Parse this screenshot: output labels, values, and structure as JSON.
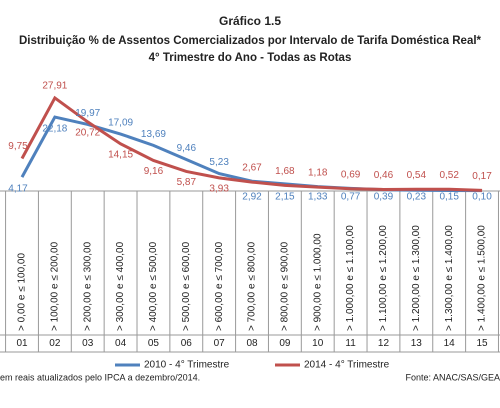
{
  "chart_data": {
    "type": "line",
    "title": "Gráfico 1.5",
    "subtitle": [
      "Distribuição % de Assentos Comercializados por Intervalo de Tarifa Doméstica Real*",
      "4° Trimestre do Ano - Todas as Rotas"
    ],
    "categories": [
      "> 0,00 e ≤ 100,00",
      "> 100,00 e ≤ 200,00",
      "> 200,00 e ≤ 300,00",
      "> 300,00 e ≤ 400,00",
      "> 400,00 e ≤ 500,00",
      "> 500,00 e ≤ 600,00",
      "> 600,00 e ≤ 700,00",
      "> 700,00 e ≤ 800,00",
      "> 800,00 e ≤ 900,00",
      "> 900,00 e ≤ 1.000,00",
      "> 1.000,00 e ≤ 1.100,00",
      "> 1.100,00 e ≤ 1.200,00",
      "> 1.200,00 e ≤ 1.300,00",
      "> 1.300,00 e ≤ 1.400,00",
      "> 1.400,00 e ≤ 1.500,00"
    ],
    "codes": [
      "01",
      "02",
      "03",
      "04",
      "05",
      "06",
      "07",
      "08",
      "09",
      "10",
      "11",
      "12",
      "13",
      "14",
      "15"
    ],
    "series": [
      {
        "name": "2010 - 4° Trimestre",
        "color": "#4f81bd",
        "values": [
          4.17,
          22.18,
          19.97,
          17.09,
          13.69,
          9.46,
          5.23,
          2.92,
          2.15,
          1.33,
          0.77,
          0.39,
          0.23,
          0.15,
          0.1
        ],
        "value_labels": [
          "4,17",
          "22,18",
          "19,97",
          "17,09",
          "13,69",
          "9,46",
          "5,23",
          "2,92",
          "2,15",
          "1,33",
          "0,77",
          "0,39",
          "0,23",
          "0,15",
          "0,10"
        ]
      },
      {
        "name": "2014 - 4° Trimestre",
        "color": "#c0504d",
        "values": [
          9.75,
          27.91,
          20.72,
          14.15,
          9.16,
          5.87,
          3.93,
          2.67,
          1.68,
          1.18,
          0.69,
          0.46,
          0.54,
          0.52,
          0.17
        ],
        "value_labels": [
          "9,75",
          "27,91",
          "20,72",
          "14,15",
          "9,16",
          "5,87",
          "3,93",
          "2,67",
          "1,68",
          "1,18",
          "0,69",
          "0,46",
          "0,54",
          "0,52",
          "0,17"
        ]
      }
    ],
    "ylim": [
      0,
      30
    ],
    "footnote": "em reais atualizados pelo IPCA a dezembro/2014.",
    "source": "Fonte: ANAC/SAS/GEA"
  }
}
